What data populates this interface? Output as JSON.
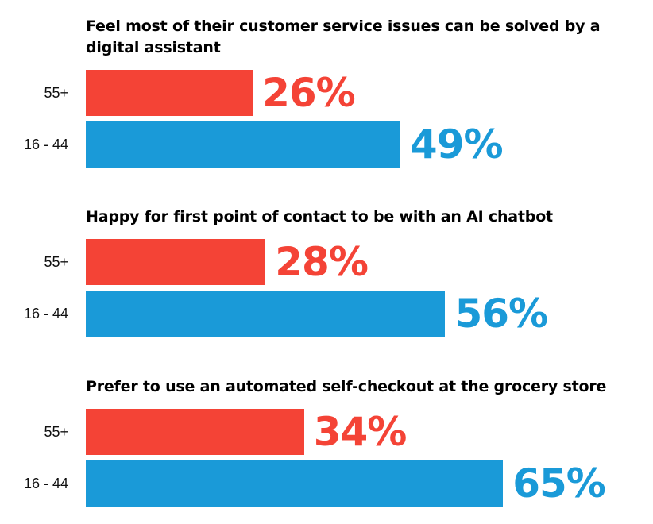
{
  "chart_data": {
    "type": "bar",
    "orientation": "horizontal",
    "value_suffix": "%",
    "xlim": [
      0,
      100
    ],
    "grid": false,
    "colors": {
      "55+": "#f44336",
      "16 - 44": "#1a9ad8"
    },
    "groups": [
      {
        "title": "Feel most of their customer service issues can be solved by a digital assistant",
        "bars": [
          {
            "category": "55+",
            "value": 26
          },
          {
            "category": "16 - 44",
            "value": 49
          }
        ]
      },
      {
        "title": "Happy for first point of contact to be with an AI chatbot",
        "bars": [
          {
            "category": "55+",
            "value": 28
          },
          {
            "category": "16 - 44",
            "value": 56
          }
        ]
      },
      {
        "title": "Prefer to use an automated self-checkout at the grocery store",
        "bars": [
          {
            "category": "55+",
            "value": 34
          },
          {
            "category": "16 - 44",
            "value": 65
          }
        ]
      }
    ]
  }
}
